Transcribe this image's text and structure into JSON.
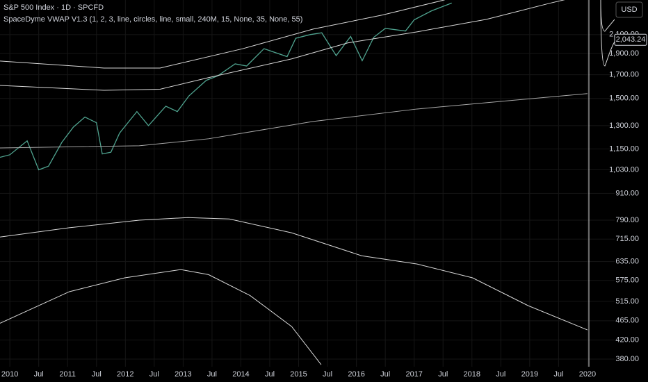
{
  "chart_data": {
    "type": "line",
    "title": "S&P 500 Index · 1D · SPCFD",
    "subtitle": "SpaceDyme VWAP V1.3 (1, 2, 3, line, circles, line, small, 240M, 15, None, 35, None, 55)",
    "currency": "USD",
    "last_price": {
      "value": 2043.24,
      "label": "2,043.24"
    },
    "log_scale": true,
    "grid": true,
    "xlim": [
      2009.83,
      2020.47
    ],
    "ylim": [
      365,
      2520
    ],
    "xticks": [
      {
        "value": 2010.0,
        "label": "2010"
      },
      {
        "value": 2010.5,
        "label": "Jul"
      },
      {
        "value": 2011.0,
        "label": "2011"
      },
      {
        "value": 2011.5,
        "label": "Jul"
      },
      {
        "value": 2012.0,
        "label": "2012"
      },
      {
        "value": 2012.5,
        "label": "Jul"
      },
      {
        "value": 2013.0,
        "label": "2013"
      },
      {
        "value": 2013.5,
        "label": "Jul"
      },
      {
        "value": 2014.0,
        "label": "2014"
      },
      {
        "value": 2014.5,
        "label": "Jul"
      },
      {
        "value": 2015.0,
        "label": "2015"
      },
      {
        "value": 2015.5,
        "label": "Jul"
      },
      {
        "value": 2016.0,
        "label": "2016"
      },
      {
        "value": 2016.5,
        "label": "Jul"
      },
      {
        "value": 2017.0,
        "label": "2017"
      },
      {
        "value": 2017.5,
        "label": "Jul"
      },
      {
        "value": 2018.0,
        "label": "2018"
      },
      {
        "value": 2018.5,
        "label": "Jul"
      },
      {
        "value": 2019.0,
        "label": "2019"
      },
      {
        "value": 2019.5,
        "label": "Jul"
      },
      {
        "value": 2020.0,
        "label": "2020"
      }
    ],
    "yticks": [
      {
        "value": 380,
        "label": "380.00"
      },
      {
        "value": 420,
        "label": "420.00"
      },
      {
        "value": 465,
        "label": "465.00"
      },
      {
        "value": 515,
        "label": "515.00"
      },
      {
        "value": 575,
        "label": "575.00"
      },
      {
        "value": 635,
        "label": "635.00"
      },
      {
        "value": 715,
        "label": "715.00"
      },
      {
        "value": 790,
        "label": "790.00"
      },
      {
        "value": 910,
        "label": "910.00"
      },
      {
        "value": 1030,
        "label": "1,030.00"
      },
      {
        "value": 1150,
        "label": "1,150.00"
      },
      {
        "value": 1300,
        "label": "1,300.00"
      },
      {
        "value": 1500,
        "label": "1,500.00"
      },
      {
        "value": 1700,
        "label": "1,700.00"
      },
      {
        "value": 1900,
        "label": "1,900.00"
      },
      {
        "value": 2100,
        "label": "2,100.00"
      }
    ],
    "series": [
      {
        "color": "#4fa38f",
        "x": [
          2009.83,
          2010.0,
          2010.3,
          2010.5,
          2010.67,
          2010.9,
          2011.1,
          2011.3,
          2011.5,
          2011.6,
          2011.75,
          2011.9,
          2012.2,
          2012.4,
          2012.7,
          2012.9,
          2013.1,
          2013.4,
          2013.6,
          2013.9,
          2014.1,
          2014.4,
          2014.8,
          2014.95,
          2015.2,
          2015.4,
          2015.65,
          2015.9,
          2016.1,
          2016.3,
          2016.5,
          2016.85,
          2017.0,
          2017.3,
          2017.65
        ],
        "values": [
          1100,
          1115,
          1200,
          1030,
          1050,
          1190,
          1290,
          1360,
          1320,
          1120,
          1130,
          1250,
          1400,
          1300,
          1440,
          1400,
          1520,
          1650,
          1690,
          1800,
          1780,
          1950,
          1870,
          2060,
          2100,
          2120,
          1880,
          2080,
          1830,
          2070,
          2170,
          2140,
          2270,
          2380,
          2480
        ]
      },
      {
        "color": "#d9d9d9",
        "x": [
          2009.83,
          2011.63,
          2012.6,
          2014.04,
          2015.25,
          2016.45,
          2017.53
        ],
        "values": [
          1827,
          1761,
          1761,
          1951,
          2162,
          2328,
          2522
        ]
      },
      {
        "color": "#d9d9d9",
        "x": [
          2009.83,
          2011.63,
          2012.6,
          2013.44,
          2014.88,
          2015.85,
          2017.05,
          2018.25,
          2019.34,
          2020.0
        ],
        "values": [
          1607,
          1566,
          1575,
          1674,
          1848,
          2010,
          2131,
          2276,
          2476,
          2596
        ]
      },
      {
        "color": "#a8a8a8",
        "x": [
          2009.83,
          2012.24,
          2013.44,
          2015.25,
          2017.05,
          2018.25,
          2020.0
        ],
        "values": [
          1156,
          1169,
          1213,
          1329,
          1419,
          1467,
          1539
        ]
      },
      {
        "color": "#d9d9d9",
        "x": [
          2009.83,
          2011.03,
          2012.24,
          2013.08,
          2013.8,
          2014.88,
          2016.09,
          2017.05,
          2018.01,
          2018.98,
          2020.0
        ],
        "values": [
          723,
          759,
          790,
          801,
          795,
          739,
          655,
          627,
          583,
          503,
          443
        ]
      },
      {
        "color": "#d9d9d9",
        "x": [
          2009.83,
          2011.03,
          2011.99,
          2012.96,
          2013.44,
          2014.16,
          2014.88,
          2015.39
        ],
        "values": [
          459,
          542,
          583,
          609,
          593,
          531,
          451,
          369
        ]
      }
    ]
  }
}
